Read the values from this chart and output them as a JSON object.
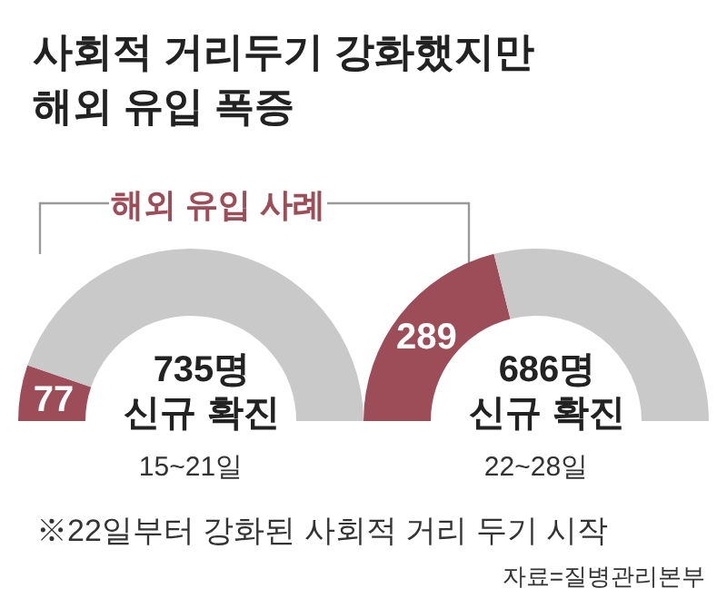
{
  "chart_data": [
    {
      "type": "donut",
      "title": "사회적 거리두기 강화했지만",
      "subtitle": "해외 유입 폭증",
      "categories": [
        null,
        null
      ],
      "values": [
        77,
        658
      ],
      "colors": [
        "#9c4d57",
        "#c9c9c9"
      ],
      "value_labels": [
        "77",
        null
      ],
      "xlabel": "15~21일",
      "annotations": [
        "735명",
        "신규 확진",
        "해외 유입 사례"
      ]
    },
    {
      "type": "donut",
      "categories": [
        null,
        null
      ],
      "values": [
        289,
        397
      ],
      "colors": [
        "#9c4d57",
        "#c9c9c9"
      ],
      "value_labels": [
        "289",
        null
      ],
      "xlabel": "22~28일",
      "annotations": [
        "686명",
        "신규 확진",
        "※22일부터 강화된 사회적 거리 두기 시작",
        "자료=질병관리본부"
      ]
    }
  ]
}
